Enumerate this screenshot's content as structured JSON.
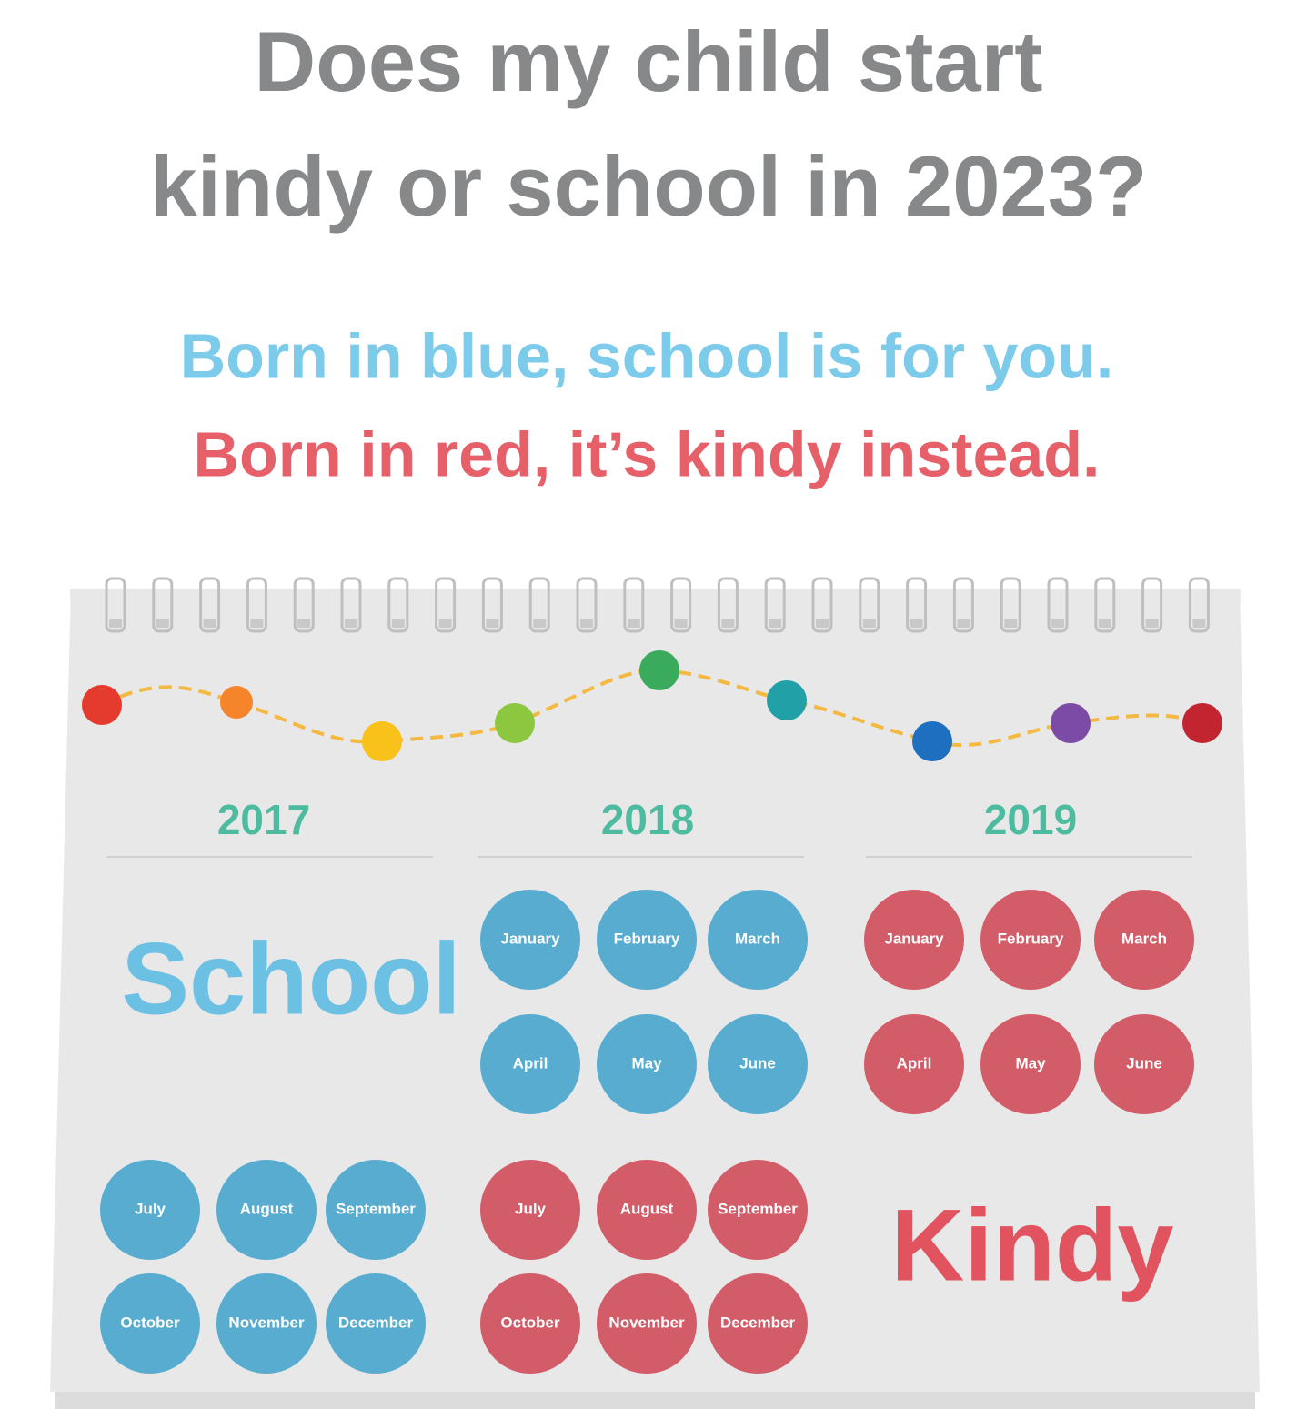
{
  "title": {
    "line1": "Does my child start",
    "line2": "kindy or school in 2023?"
  },
  "rhyme": {
    "blue": "Born in blue, school is for you.",
    "red": "Born in red, it’s kindy instead."
  },
  "calendar": {
    "years": [
      {
        "year": "2017",
        "months": [
          {
            "name": "July",
            "color": "#57acd0"
          },
          {
            "name": "August",
            "color": "#57acd0"
          },
          {
            "name": "September",
            "color": "#57acd0"
          },
          {
            "name": "October",
            "color": "#57acd0"
          },
          {
            "name": "November",
            "color": "#57acd0"
          },
          {
            "name": "December",
            "color": "#57acd0"
          }
        ]
      },
      {
        "year": "2018",
        "months": [
          {
            "name": "January",
            "color": "#57acd0"
          },
          {
            "name": "February",
            "color": "#57acd0"
          },
          {
            "name": "March",
            "color": "#57acd0"
          },
          {
            "name": "April",
            "color": "#57acd0"
          },
          {
            "name": "May",
            "color": "#57acd0"
          },
          {
            "name": "June",
            "color": "#57acd0"
          },
          {
            "name": "July",
            "color": "#d25c68"
          },
          {
            "name": "August",
            "color": "#d25c68"
          },
          {
            "name": "September",
            "color": "#d25c68"
          },
          {
            "name": "October",
            "color": "#d25c68"
          },
          {
            "name": "November",
            "color": "#d25c68"
          },
          {
            "name": "December",
            "color": "#d25c68"
          }
        ]
      },
      {
        "year": "2019",
        "months": [
          {
            "name": "January",
            "color": "#d25c68"
          },
          {
            "name": "February",
            "color": "#d25c68"
          },
          {
            "name": "March",
            "color": "#d25c68"
          },
          {
            "name": "April",
            "color": "#d25c68"
          },
          {
            "name": "May",
            "color": "#d25c68"
          },
          {
            "name": "June",
            "color": "#d25c68"
          }
        ]
      }
    ],
    "labels": {
      "school": "School",
      "kindy": "Kindy"
    }
  }
}
